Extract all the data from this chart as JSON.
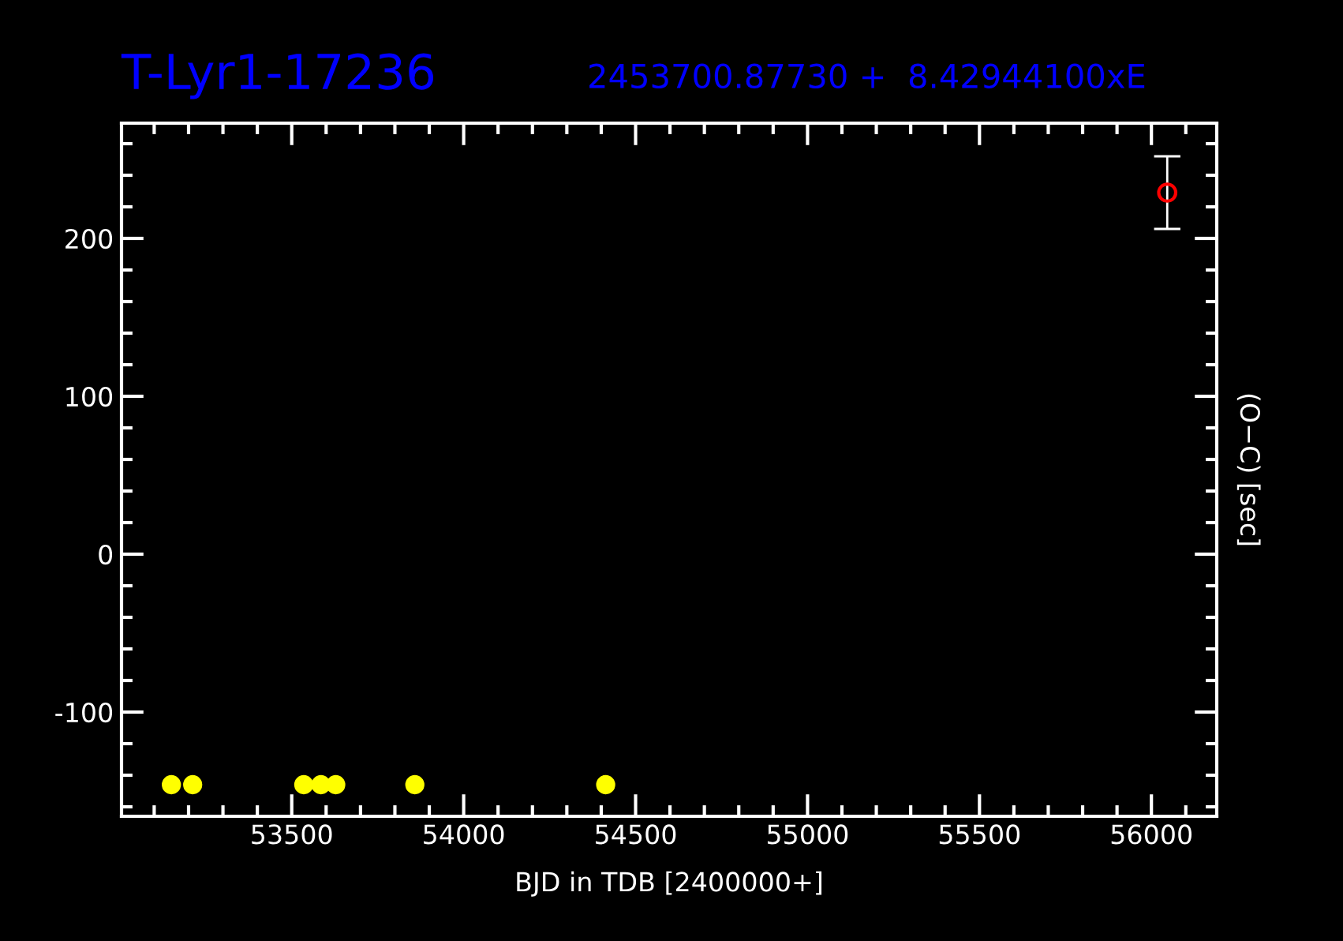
{
  "chart_data": {
    "type": "scatter",
    "title": "T-Lyr1-17236",
    "subtitle": "2453700.87730 +  8.42944100xE",
    "xlabel": "BJD in TDB [2400000+]",
    "ylabel": "(O−C) [sec]",
    "series": [
      {
        "color": "#ffff00",
        "x": [
          53150,
          53212,
          53535,
          53585,
          53628,
          53858,
          54413
        ],
        "values": [
          -146,
          -146,
          -146,
          -146,
          -146,
          -146,
          -146
        ]
      },
      {
        "color": "#ff0000",
        "x": [
          56046
        ],
        "values": [
          229
        ],
        "errors": [
          23
        ]
      }
    ],
    "xlim": [
      53005,
      56190
    ],
    "ylim": [
      -166,
      273
    ],
    "xticks": [
      53500,
      54000,
      54500,
      55000,
      55500,
      56000
    ],
    "yticks": [
      -100,
      0,
      100,
      200
    ],
    "marker": "circle",
    "grid": false
  }
}
